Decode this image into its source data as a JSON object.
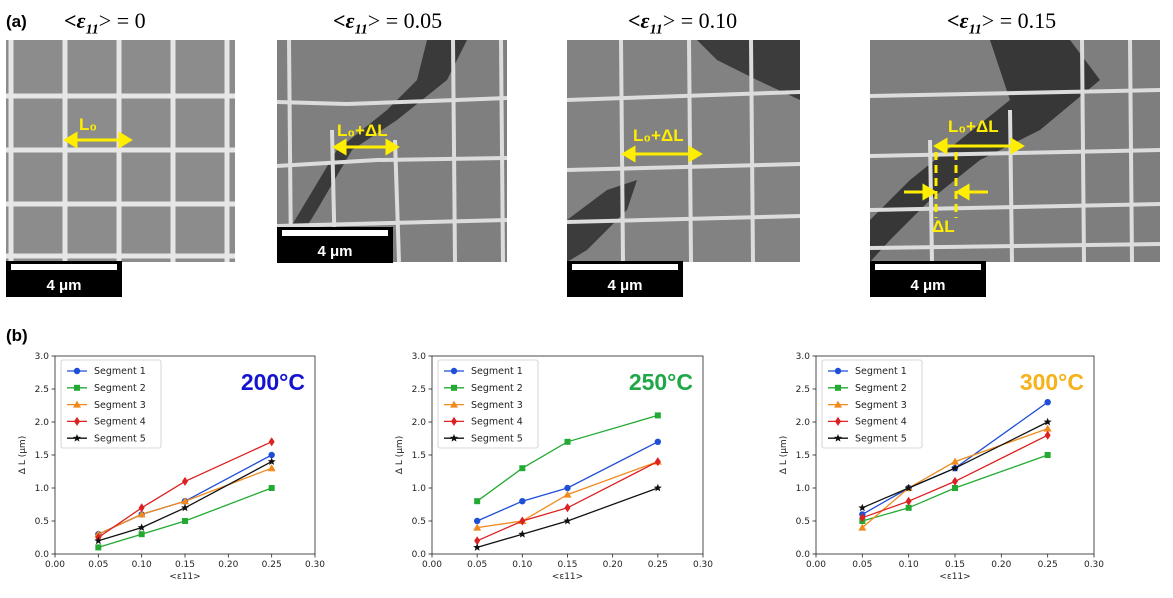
{
  "panel_labels": {
    "a": "(a)",
    "b": "(b)"
  },
  "micrographs": [
    {
      "strain_prefix": "<ε",
      "strain_sub": "11",
      "strain_suffix": "> = 0",
      "length_label": "L₀",
      "scale_text": "4 μm"
    },
    {
      "strain_prefix": "<ε",
      "strain_sub": "11",
      "strain_suffix": "> = 0.05",
      "length_label": "L₀+ΔL",
      "scale_text": "4 μm"
    },
    {
      "strain_prefix": "<ε",
      "strain_sub": "11",
      "strain_suffix": "> = 0.10",
      "length_label": "L₀+ΔL",
      "scale_text": "4 μm"
    },
    {
      "strain_prefix": "<ε",
      "strain_sub": "11",
      "strain_suffix": "> = 0.15",
      "length_label": "L₀+ΔL",
      "delta_label": "ΔL",
      "scale_text": "4 μm"
    }
  ],
  "colors": {
    "segment1": "#1f4fd6",
    "segment2": "#22aa33",
    "segment3": "#f08a1c",
    "segment4": "#dd2020",
    "segment5": "#111111",
    "t200": "#1414d0",
    "t250": "#20a848",
    "t300": "#f5b21a",
    "annotation": "#ffee00"
  },
  "chart_data": [
    {
      "type": "line",
      "annotation": "200°C",
      "xlabel": "<ε11>",
      "ylabel": "Δ L (μm)",
      "xlim": [
        0,
        0.3
      ],
      "ylim": [
        0,
        3.0
      ],
      "x_ticks": [
        "0.00",
        "0.05",
        "0.10",
        "0.15",
        "0.20",
        "0.25",
        "0.30"
      ],
      "y_ticks": [
        "0.0",
        "0.5",
        "1.0",
        "1.5",
        "2.0",
        "2.5",
        "3.0"
      ],
      "legend_position": "top-left",
      "x": [
        0.05,
        0.1,
        0.15,
        0.25
      ],
      "series": [
        {
          "name": "Segment 1",
          "values": [
            0.3,
            0.6,
            0.8,
            1.5
          ],
          "marker": "circle",
          "color": "#1f4fd6"
        },
        {
          "name": "Segment 2",
          "values": [
            0.1,
            0.3,
            0.5,
            1.0
          ],
          "marker": "square",
          "color": "#22aa33"
        },
        {
          "name": "Segment 3",
          "values": [
            0.3,
            0.6,
            0.8,
            1.3
          ],
          "marker": "triangle",
          "color": "#f08a1c"
        },
        {
          "name": "Segment 4",
          "values": [
            0.25,
            0.7,
            1.1,
            1.7
          ],
          "marker": "diamond",
          "color": "#dd2020"
        },
        {
          "name": "Segment 5",
          "values": [
            0.2,
            0.4,
            0.7,
            1.4
          ],
          "marker": "star",
          "color": "#111111"
        }
      ]
    },
    {
      "type": "line",
      "annotation": "250°C",
      "xlabel": "<ε11>",
      "ylabel": "Δ L (μm)",
      "xlim": [
        0,
        0.3
      ],
      "ylim": [
        0,
        3.0
      ],
      "x_ticks": [
        "0.00",
        "0.05",
        "0.10",
        "0.15",
        "0.20",
        "0.25",
        "0.30"
      ],
      "y_ticks": [
        "0.0",
        "0.5",
        "1.0",
        "1.5",
        "2.0",
        "2.5",
        "3.0"
      ],
      "legend_position": "top-left",
      "x": [
        0.05,
        0.1,
        0.15,
        0.25
      ],
      "series": [
        {
          "name": "Segment 1",
          "values": [
            0.5,
            0.8,
            1.0,
            1.7
          ],
          "marker": "circle",
          "color": "#1f4fd6"
        },
        {
          "name": "Segment 2",
          "values": [
            0.8,
            1.3,
            1.7,
            2.1
          ],
          "marker": "square",
          "color": "#22aa33"
        },
        {
          "name": "Segment 3",
          "values": [
            0.4,
            0.5,
            0.9,
            1.4
          ],
          "marker": "triangle",
          "color": "#f08a1c"
        },
        {
          "name": "Segment 4",
          "values": [
            0.2,
            0.5,
            0.7,
            1.4
          ],
          "marker": "diamond",
          "color": "#dd2020"
        },
        {
          "name": "Segment 5",
          "values": [
            0.1,
            0.3,
            0.5,
            1.0
          ],
          "marker": "star",
          "color": "#111111"
        }
      ]
    },
    {
      "type": "line",
      "annotation": "300°C",
      "xlabel": "<ε11>",
      "ylabel": "Δ L (μm)",
      "xlim": [
        0,
        0.3
      ],
      "ylim": [
        0,
        3.0
      ],
      "x_ticks": [
        "0.00",
        "0.05",
        "0.10",
        "0.15",
        "0.20",
        "0.25",
        "0.30"
      ],
      "y_ticks": [
        "0.0",
        "0.5",
        "1.0",
        "1.5",
        "2.0",
        "2.5",
        "3.0"
      ],
      "legend_position": "top-left",
      "x": [
        0.05,
        0.1,
        0.15,
        0.25
      ],
      "series": [
        {
          "name": "Segment 1",
          "values": [
            0.6,
            1.0,
            1.3,
            2.3
          ],
          "marker": "circle",
          "color": "#1f4fd6"
        },
        {
          "name": "Segment 2",
          "values": [
            0.5,
            0.7,
            1.0,
            1.5
          ],
          "marker": "square",
          "color": "#22aa33"
        },
        {
          "name": "Segment 3",
          "values": [
            0.4,
            1.0,
            1.4,
            1.9
          ],
          "marker": "triangle",
          "color": "#f08a1c"
        },
        {
          "name": "Segment 4",
          "values": [
            0.55,
            0.8,
            1.1,
            1.8
          ],
          "marker": "diamond",
          "color": "#dd2020"
        },
        {
          "name": "Segment 5",
          "values": [
            0.7,
            1.0,
            1.3,
            2.0
          ],
          "marker": "star",
          "color": "#111111"
        }
      ]
    }
  ]
}
